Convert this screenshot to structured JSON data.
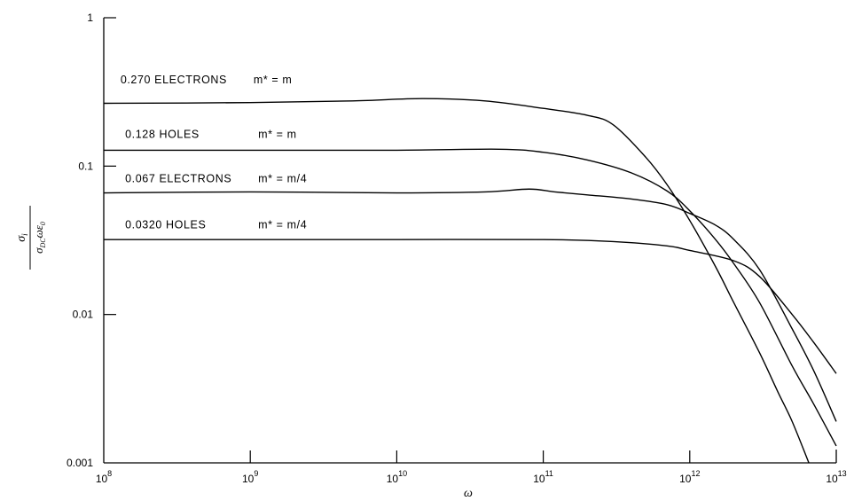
{
  "chart_data": {
    "type": "line",
    "xscale": "log",
    "yscale": "log",
    "xlim": [
      100000000,
      10000000000000
    ],
    "ylim": [
      0.001,
      1
    ],
    "grid": false,
    "xlabel": "ω",
    "ylabel": {
      "numerator": "σ",
      "numerator_subscript": "i",
      "denominator": "σ",
      "denominator_subscript": "DC",
      "denominator_tail": "ωε",
      "denominator_tail_subscript": "0"
    },
    "x_ticks": [
      {
        "value": 100000000,
        "base": "10",
        "exp": "8"
      },
      {
        "value": 1000000000,
        "base": "10",
        "exp": "9"
      },
      {
        "value": 10000000000,
        "base": "10",
        "exp": "10"
      },
      {
        "value": 100000000000,
        "base": "10",
        "exp": "11"
      },
      {
        "value": 1000000000000,
        "base": "10",
        "exp": "12"
      },
      {
        "value": 10000000000000,
        "base": "10",
        "exp": "13"
      }
    ],
    "y_ticks": [
      {
        "value": 1,
        "label": "1"
      },
      {
        "value": 0.1,
        "label": "0.1"
      },
      {
        "value": 0.01,
        "label": "0.01"
      },
      {
        "value": 0.001,
        "label": "0.001"
      }
    ],
    "series": [
      {
        "name": "0.270 ELECTRONS",
        "mass_label": "m* = m",
        "label_anchor": [
          130000000,
          0.36
        ],
        "points": [
          [
            100000000,
            0.265
          ],
          [
            1000000000,
            0.268
          ],
          [
            5000000000,
            0.275
          ],
          [
            15000000000,
            0.285
          ],
          [
            40000000000,
            0.275
          ],
          [
            100000000000,
            0.245
          ],
          [
            200000000000,
            0.22
          ],
          [
            300000000000,
            0.19
          ],
          [
            500000000000,
            0.115
          ],
          [
            700000000000,
            0.075
          ],
          [
            1000000000000,
            0.043
          ],
          [
            1500000000000,
            0.021
          ],
          [
            2000000000000,
            0.012
          ],
          [
            3000000000000,
            0.0055
          ],
          [
            4000000000000,
            0.003
          ],
          [
            5000000000000,
            0.0019
          ],
          [
            6500000000000,
            0.001
          ]
        ]
      },
      {
        "name": "0.128 HOLES",
        "mass_label": "m* = m",
        "label_anchor": [
          140000000,
          0.155
        ],
        "points": [
          [
            100000000,
            0.128
          ],
          [
            1000000000,
            0.128
          ],
          [
            10000000000,
            0.128
          ],
          [
            50000000000,
            0.13
          ],
          [
            100000000000,
            0.124
          ],
          [
            200000000000,
            0.11
          ],
          [
            400000000000,
            0.09
          ],
          [
            700000000000,
            0.068
          ],
          [
            1000000000000,
            0.05
          ],
          [
            1500000000000,
            0.032
          ],
          [
            2000000000000,
            0.022
          ],
          [
            3000000000000,
            0.012
          ],
          [
            5000000000000,
            0.0045
          ],
          [
            7000000000000,
            0.0025
          ],
          [
            10000000000000,
            0.0013
          ]
        ]
      },
      {
        "name": "0.067 ELECTRONS",
        "mass_label": "m* = m/4",
        "label_anchor": [
          140000000,
          0.078
        ],
        "points": [
          [
            100000000,
            0.066
          ],
          [
            1000000000,
            0.067
          ],
          [
            10000000000,
            0.066
          ],
          [
            40000000000,
            0.067
          ],
          [
            80000000000,
            0.07
          ],
          [
            120000000000,
            0.067
          ],
          [
            200000000000,
            0.064
          ],
          [
            400000000000,
            0.06
          ],
          [
            700000000000,
            0.055
          ],
          [
            1000000000000,
            0.048
          ],
          [
            1500000000000,
            0.04
          ],
          [
            2000000000000,
            0.032
          ],
          [
            3000000000000,
            0.02
          ],
          [
            5000000000000,
            0.008
          ],
          [
            7000000000000,
            0.0042
          ],
          [
            10000000000000,
            0.0019
          ]
        ]
      },
      {
        "name": "0.0320 HOLES",
        "mass_label": "m* = m/4",
        "label_anchor": [
          140000000,
          0.038
        ],
        "points": [
          [
            100000000,
            0.032
          ],
          [
            1000000000,
            0.032
          ],
          [
            10000000000,
            0.032
          ],
          [
            100000000000,
            0.032
          ],
          [
            300000000000,
            0.031
          ],
          [
            700000000000,
            0.029
          ],
          [
            1000000000000,
            0.027
          ],
          [
            2000000000000,
            0.023
          ],
          [
            3000000000000,
            0.018
          ],
          [
            5000000000000,
            0.01
          ],
          [
            7000000000000,
            0.0065
          ],
          [
            10000000000000,
            0.004
          ]
        ]
      }
    ]
  }
}
